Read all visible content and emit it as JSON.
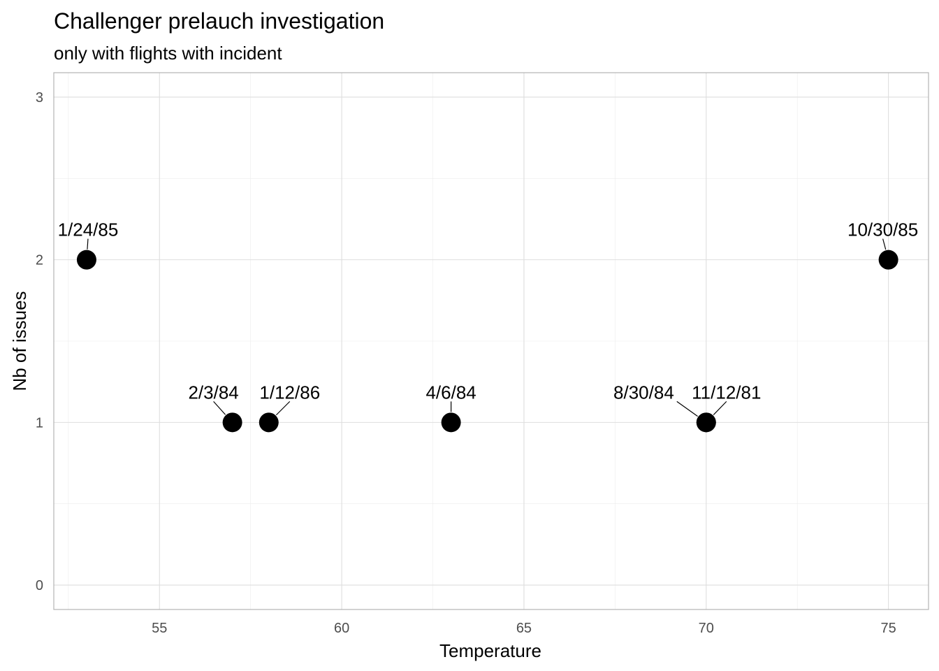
{
  "chart_data": {
    "type": "scatter",
    "title": "Challenger prelauch investigation",
    "subtitle": "only with flights with incident",
    "xlabel": "Temperature",
    "ylabel": "Nb of issues",
    "xlim": [
      52.1,
      76.1
    ],
    "ylim": [
      -0.15,
      3.15
    ],
    "x_ticks": [
      55,
      60,
      65,
      70,
      75
    ],
    "y_ticks": [
      0,
      1,
      2,
      3
    ],
    "grid": true,
    "legend": "none",
    "point_color": "#000000",
    "points": [
      {
        "x": 53,
        "y": 2,
        "label": "1/24/85"
      },
      {
        "x": 57,
        "y": 1,
        "label": "2/3/84"
      },
      {
        "x": 58,
        "y": 1,
        "label": "1/12/86"
      },
      {
        "x": 63,
        "y": 1,
        "label": "4/6/84"
      },
      {
        "x": 70,
        "y": 1,
        "label": "8/30/84"
      },
      {
        "x": 70,
        "y": 1,
        "label": "11/12/81"
      },
      {
        "x": 75,
        "y": 2,
        "label": "10/30/85"
      }
    ]
  }
}
